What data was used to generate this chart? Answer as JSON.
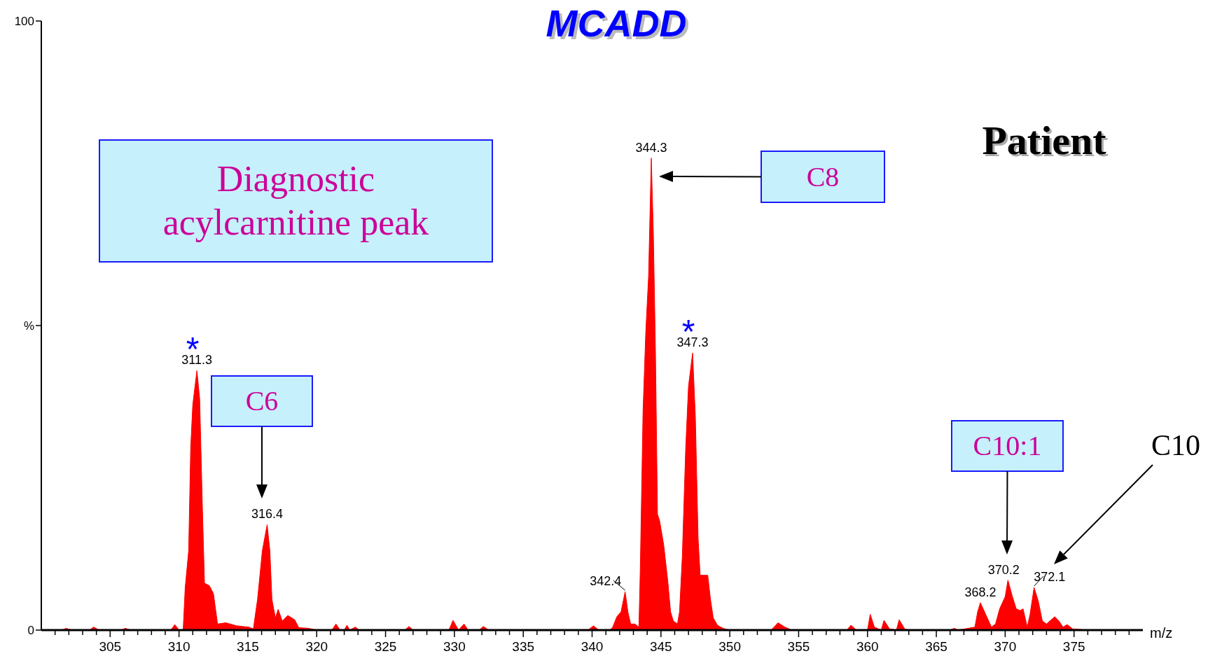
{
  "chart_data": {
    "type": "area",
    "title": "MCADD",
    "xlabel": "m/z",
    "xlim": [
      300,
      380
    ],
    "ylim": [
      0,
      100
    ],
    "xticks": [
      {
        "value": 301,
        "label": null
      },
      {
        "value": 302,
        "label": null
      },
      {
        "value": 303,
        "label": null
      },
      {
        "value": 304,
        "label": null
      },
      305,
      {
        "value": 306,
        "label": null
      },
      {
        "value": 307,
        "label": null
      },
      {
        "value": 308,
        "label": null
      },
      {
        "value": 309,
        "label": null
      },
      310,
      {
        "value": 311,
        "label": null
      },
      {
        "value": 312,
        "label": null
      },
      {
        "value": 313,
        "label": null
      },
      {
        "value": 314,
        "label": null
      },
      315,
      {
        "value": 316,
        "label": null
      },
      {
        "value": 317,
        "label": null
      },
      {
        "value": 318,
        "label": null
      },
      {
        "value": 319,
        "label": null
      },
      320,
      {
        "value": 321,
        "label": null
      },
      {
        "value": 322,
        "label": null
      },
      {
        "value": 323,
        "label": null
      },
      {
        "value": 324,
        "label": null
      },
      325,
      {
        "value": 326,
        "label": null
      },
      {
        "value": 327,
        "label": null
      },
      {
        "value": 328,
        "label": null
      },
      {
        "value": 329,
        "label": null
      },
      330,
      {
        "value": 331,
        "label": null
      },
      {
        "value": 332,
        "label": null
      },
      {
        "value": 333,
        "label": null
      },
      {
        "value": 334,
        "label": null
      },
      335,
      {
        "value": 336,
        "label": null
      },
      {
        "value": 337,
        "label": null
      },
      {
        "value": 338,
        "label": null
      },
      {
        "value": 339,
        "label": null
      },
      340,
      {
        "value": 341,
        "label": null
      },
      {
        "value": 342,
        "label": null
      },
      {
        "value": 343,
        "label": null
      },
      {
        "value": 344,
        "label": null
      },
      345,
      {
        "value": 346,
        "label": null
      },
      {
        "value": 347,
        "label": null
      },
      {
        "value": 348,
        "label": null
      },
      {
        "value": 349,
        "label": null
      },
      350,
      {
        "value": 351,
        "label": null
      },
      {
        "value": 352,
        "label": null
      },
      {
        "value": 353,
        "label": null
      },
      {
        "value": 354,
        "label": null
      },
      355,
      {
        "value": 356,
        "label": null
      },
      {
        "value": 357,
        "label": null
      },
      {
        "value": 358,
        "label": null
      },
      {
        "value": 359,
        "label": null
      },
      360,
      {
        "value": 361,
        "label": null
      },
      {
        "value": 362,
        "label": null
      },
      {
        "value": 363,
        "label": null
      },
      {
        "value": 364,
        "label": null
      },
      365,
      {
        "value": 366,
        "label": null
      },
      {
        "value": 367,
        "label": null
      },
      {
        "value": 368,
        "label": null
      },
      {
        "value": 369,
        "label": null
      },
      370,
      {
        "value": 371,
        "label": null
      },
      {
        "value": 372,
        "label": null
      },
      {
        "value": 373,
        "label": null
      },
      {
        "value": 374,
        "label": null
      },
      375,
      {
        "value": 376,
        "label": null
      },
      {
        "value": 377,
        "label": null
      },
      {
        "value": 378,
        "label": null
      },
      {
        "value": 379,
        "label": null
      }
    ],
    "yticks": [
      0,
      {
        "value": 50,
        "label": "%"
      },
      100
    ],
    "x": [
      300.0,
      301.5,
      301.8,
      302.2,
      303.5,
      303.8,
      304.2,
      305.8,
      306.1,
      306.5,
      309.4,
      309.7,
      310.0,
      310.3,
      310.45,
      310.7,
      310.85,
      311.0,
      311.3,
      311.5,
      311.7,
      311.85,
      312.2,
      312.5,
      312.8,
      313.4,
      314.2,
      315.05,
      315.4,
      315.7,
      316.05,
      316.4,
      316.6,
      316.75,
      317.0,
      317.2,
      317.5,
      317.9,
      318.4,
      318.7,
      319.4,
      320.0,
      321.1,
      321.4,
      321.7,
      322.0,
      322.2,
      322.4,
      322.8,
      323.1,
      326.4,
      326.7,
      327.0,
      329.6,
      329.9,
      330.3,
      330.7,
      331.0,
      331.8,
      332.1,
      332.5,
      339.7,
      340.1,
      340.5,
      341.3,
      341.5,
      341.8,
      342.1,
      342.4,
      342.6,
      342.8,
      343.1,
      343.4,
      343.5,
      343.7,
      343.9,
      344.1,
      344.3,
      344.45,
      344.6,
      344.75,
      344.9,
      345.2,
      345.5,
      345.7,
      345.9,
      346.2,
      346.35,
      346.55,
      346.8,
      347.0,
      347.3,
      347.5,
      347.7,
      347.85,
      348.2,
      348.4,
      348.6,
      348.8,
      349.1,
      349.5,
      350.0,
      353.0,
      353.5,
      354.0,
      354.5,
      358.5,
      358.8,
      359.2,
      360.0,
      360.2,
      360.5,
      361.0,
      361.2,
      361.6,
      362.1,
      362.3,
      362.7,
      363.0,
      366.0,
      366.3,
      366.6,
      367.8,
      368.0,
      368.2,
      368.6,
      369.0,
      369.3,
      369.6,
      370.0,
      370.2,
      370.5,
      370.8,
      371.1,
      371.3,
      371.6,
      371.8,
      372.1,
      372.4,
      372.7,
      373.0,
      373.3,
      373.6,
      373.9,
      374.2,
      374.5,
      374.9,
      376.0,
      380.0
    ],
    "series": [
      {
        "color": "#ff0000",
        "values": [
          0,
          0,
          0.3,
          0,
          0,
          0.5,
          0,
          0,
          0.3,
          0,
          0,
          0.9,
          0,
          0,
          7,
          13,
          30,
          37,
          42.6,
          38,
          20,
          7.7,
          7.3,
          6,
          1,
          1.2,
          0.7,
          0.5,
          0.2,
          5,
          13,
          17.3,
          13,
          5,
          2,
          3.4,
          1.5,
          2.4,
          1.7,
          0.4,
          0.3,
          0,
          0,
          1,
          0,
          0,
          0.8,
          0,
          0.5,
          0,
          0,
          0.6,
          0,
          0,
          1.6,
          0,
          1.0,
          0,
          0,
          0.6,
          0,
          0,
          0.7,
          0,
          0,
          0.5,
          2.2,
          3,
          6.3,
          3,
          1,
          1,
          0.5,
          10,
          36,
          49,
          58,
          77.5,
          65,
          46,
          19,
          18,
          14,
          8,
          3,
          1.5,
          1,
          3,
          12,
          30,
          40,
          45.5,
          35,
          15,
          9,
          9,
          9,
          5,
          2,
          0.8,
          0.3,
          0,
          0,
          1.2,
          0.5,
          0,
          0,
          0.8,
          0,
          0,
          2.6,
          0.5,
          0,
          1.6,
          0.2,
          0,
          1.7,
          0.2,
          0,
          0,
          0.3,
          0,
          0.5,
          3,
          4.5,
          2.5,
          0.5,
          1,
          3.5,
          5.5,
          8.2,
          5.7,
          3.5,
          3.2,
          3.5,
          0.5,
          2.5,
          7,
          4.8,
          1.5,
          1,
          1.6,
          2.2,
          1.5,
          0.5,
          0.9,
          0.2,
          0,
          0
        ]
      }
    ],
    "annotations": [
      "Diagnostic acylcarnitine peak",
      "Patient",
      "C8",
      "C6",
      "C10:1",
      "C10",
      {
        "text": "*",
        "x": 311.3,
        "y": 42.6
      },
      {
        "text": "*",
        "x": 347.3,
        "y": 45.5
      },
      {
        "text": "311.3",
        "x": 311.3,
        "y": 42.6
      },
      {
        "text": "316.4",
        "x": 316.4,
        "y": 17.3
      },
      {
        "text": "342.4",
        "x": 342.4,
        "y": 6.3
      },
      {
        "text": "344.3",
        "x": 344.3,
        "y": 77.5
      },
      {
        "text": "347.3",
        "x": 347.3,
        "y": 45.5
      },
      {
        "text": "368.2",
        "x": 368.2,
        "y": 4.5
      },
      {
        "text": "370.2",
        "x": 370.2,
        "y": 8.2
      },
      {
        "text": "372.1",
        "x": 372.1,
        "y": 7
      }
    ]
  }
}
